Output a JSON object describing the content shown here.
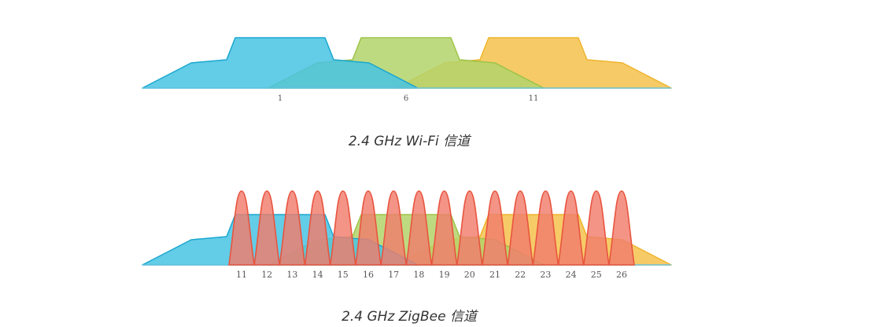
{
  "colors": {
    "wifi_channel_1_fill": "#48c3e3",
    "wifi_channel_1_stroke": "#1aa7cf",
    "wifi_channel_6_fill": "#b3d36b",
    "wifi_channel_6_stroke": "#9dc447",
    "wifi_channel_11_fill": "#f6c85f",
    "wifi_channel_11_stroke": "#efb42c",
    "zigbee_fill": "#f07c6c",
    "zigbee_stroke": "#e8553f",
    "axis_line": "#6ec6e0"
  },
  "wifi": {
    "caption": "2.4 GHz Wi-Fi 信道",
    "channels": [
      {
        "label": "1"
      },
      {
        "label": "6"
      },
      {
        "label": "11"
      }
    ]
  },
  "zigbee": {
    "caption": "2.4 GHz ZigBee 信道",
    "channels": [
      {
        "label": "11"
      },
      {
        "label": "12"
      },
      {
        "label": "13"
      },
      {
        "label": "14"
      },
      {
        "label": "15"
      },
      {
        "label": "16"
      },
      {
        "label": "17"
      },
      {
        "label": "18"
      },
      {
        "label": "19"
      },
      {
        "label": "20"
      },
      {
        "label": "21"
      },
      {
        "label": "22"
      },
      {
        "label": "23"
      },
      {
        "label": "24"
      },
      {
        "label": "25"
      },
      {
        "label": "26"
      }
    ]
  }
}
